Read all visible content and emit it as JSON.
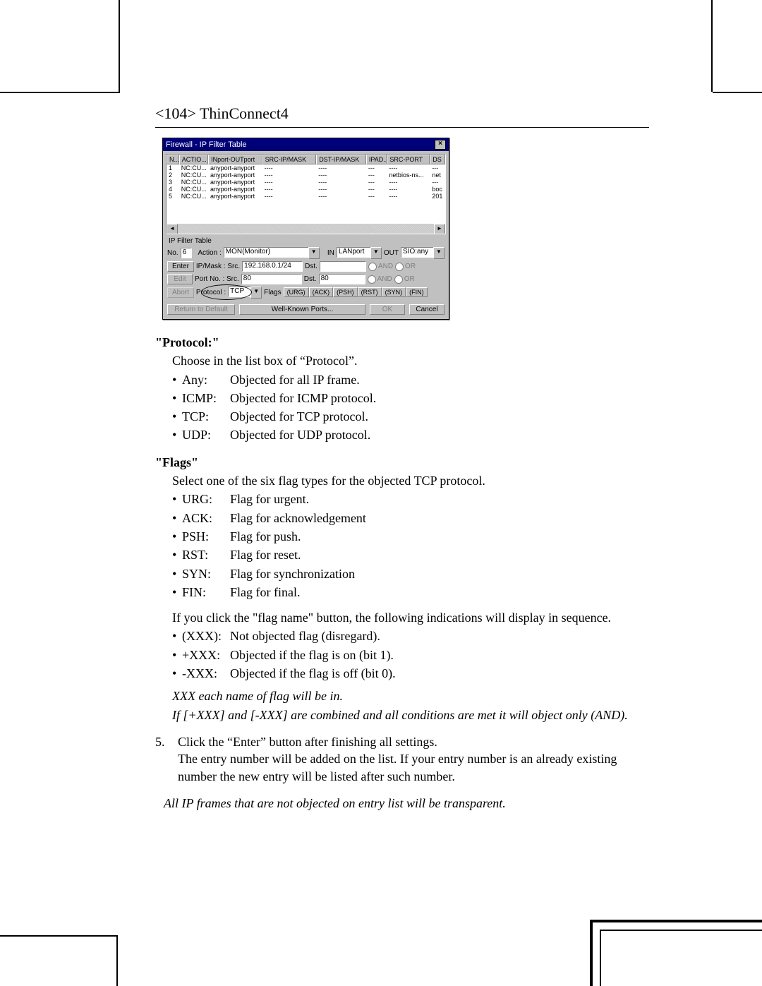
{
  "header": {
    "page_label": "<104>",
    "product": "ThinConnect4"
  },
  "dialog": {
    "title": "Firewall - IP Filter Table",
    "columns": [
      "N...",
      "ACTIO...",
      "INport-OUTport",
      "SRC-IP/MASK",
      "DST-IP/MASK",
      "IPAD...",
      "SRC-PORT",
      "DS"
    ],
    "rows": [
      {
        "n": "1",
        "act": "NC:CU...",
        "io": "anyport-anyport",
        "sm": "----",
        "dm": "----",
        "ip": "---",
        "sp": "----",
        "ds": "---"
      },
      {
        "n": "2",
        "act": "NC:CU...",
        "io": "anyport-anyport",
        "sm": "----",
        "dm": "----",
        "ip": "---",
        "sp": "netbios-ns...",
        "ds": "net"
      },
      {
        "n": "3",
        "act": "NC:CU...",
        "io": "anyport-anyport",
        "sm": "----",
        "dm": "----",
        "ip": "---",
        "sp": "----",
        "ds": "---"
      },
      {
        "n": "4",
        "act": "NC:CU...",
        "io": "anyport-anyport",
        "sm": "----",
        "dm": "----",
        "ip": "---",
        "sp": "----",
        "ds": "boc"
      },
      {
        "n": "5",
        "act": "NC:CU...",
        "io": "anyport-anyport",
        "sm": "----",
        "dm": "----",
        "ip": "---",
        "sp": "----",
        "ds": "201"
      }
    ],
    "panel_title": "IP Filter Table",
    "no_label": "No.",
    "no_value": "6",
    "action_label": "Action :",
    "action_value": "MON(Monitor)",
    "in_label": "IN",
    "in_value": "LANport",
    "out_label": "OUT",
    "out_value": "SIO:any",
    "enter": "Enter",
    "edit": "Edit",
    "abort": "Abort",
    "ipmask_label": "IP/Mask :   Src.",
    "ipmask_src": "192.168.0.1/24",
    "dst_label": "Dst.",
    "dst_value": "",
    "and": "AND",
    "or": "OR",
    "portno_label": "Port No. :   Src.",
    "port_src": "80",
    "port_dst": "80",
    "protocol_label": "Protocol :",
    "protocol_value": "TCP",
    "flags_label": "Flags",
    "flags": [
      "(URG)",
      "(ACK)",
      "(PSH)",
      "(RST)",
      "(SYN)",
      "(FIN)"
    ],
    "return": "Return to Default",
    "wellknown": "Well-Known Ports...",
    "ok": "OK",
    "cancel": "Cancel"
  },
  "text": {
    "protocol_h": "\"Protocol:\"",
    "protocol_desc": "Choose in the list box of “Protocol”.",
    "protocol_items": [
      {
        "k": "Any:",
        "v": "Objected for all IP frame."
      },
      {
        "k": "ICMP:",
        "v": "Objected for ICMP protocol."
      },
      {
        "k": "TCP:",
        "v": "Objected for TCP protocol."
      },
      {
        "k": "UDP:",
        "v": "Objected for UDP protocol."
      }
    ],
    "flags_h": "\"Flags\"",
    "flags_desc": "Select one of the six flag types for the objected TCP protocol.",
    "flag_items": [
      {
        "k": "URG:",
        "v": "Flag for urgent."
      },
      {
        "k": "ACK:",
        "v": "Flag for acknowledgement"
      },
      {
        "k": "PSH:",
        "v": "Flag for push."
      },
      {
        "k": "RST:",
        "v": "Flag for reset."
      },
      {
        "k": "SYN:",
        "v": "Flag for synchronization"
      },
      {
        "k": "FIN:",
        "v": "Flag for final."
      }
    ],
    "flagclick": "If you click the \"flag name\" button, the following indications will display in sequence.",
    "flag_modes": [
      {
        "k": "(XXX):",
        "v": "Not objected flag (disregard)."
      },
      {
        "k": "+XXX:",
        "v": "Objected if the flag is on (bit 1)."
      },
      {
        "k": "-XXX:",
        "v": "Objected if the flag is off (bit 0)."
      }
    ],
    "em1": "XXX each name of flag will be in.",
    "em2": "If [+XXX] and [-XXX] are combined and all conditions are met it will object only (AND).",
    "step5a": "Click the “Enter” button after finishing all settings.",
    "step5b": "The entry number will be added on the list. If your entry number is an already existing number the new entry will be listed after such number.",
    "footnote": "All IP frames that are not objected on entry list will be transparent."
  }
}
